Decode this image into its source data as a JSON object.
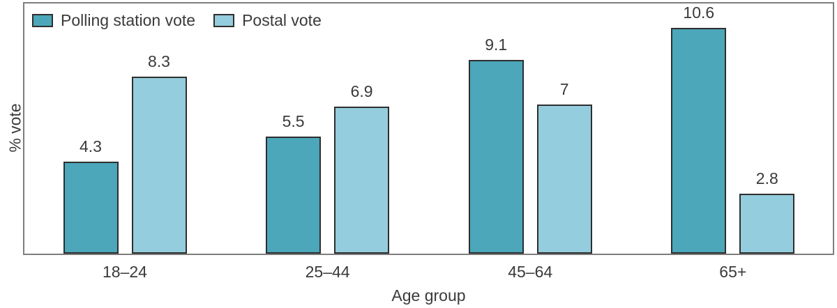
{
  "chart_data": {
    "type": "bar",
    "title": "",
    "xlabel": "Age group",
    "ylabel": "% vote",
    "categories": [
      "18–24",
      "25–44",
      "45–64",
      "65+"
    ],
    "series": [
      {
        "name": "Polling station vote",
        "values": [
          4.3,
          5.5,
          9.1,
          10.6
        ],
        "value_labels": [
          "4.3",
          "5.5",
          "9.1",
          "10.6"
        ],
        "color": "#4ba7b9"
      },
      {
        "name": "Postal vote",
        "values": [
          8.3,
          6.9,
          7,
          2.8
        ],
        "value_labels": [
          "8.3",
          "6.9",
          "7",
          "2.8"
        ],
        "color": "#94cddd"
      }
    ],
    "ylim": [
      0,
      11.8
    ],
    "grid": false,
    "value_labels_shown": true,
    "legend_position": "top-left-inside",
    "colors": {
      "frame_border": "#7d7d7d",
      "bar_border": "#2e2e2e",
      "text": "#3a3a3a"
    }
  }
}
